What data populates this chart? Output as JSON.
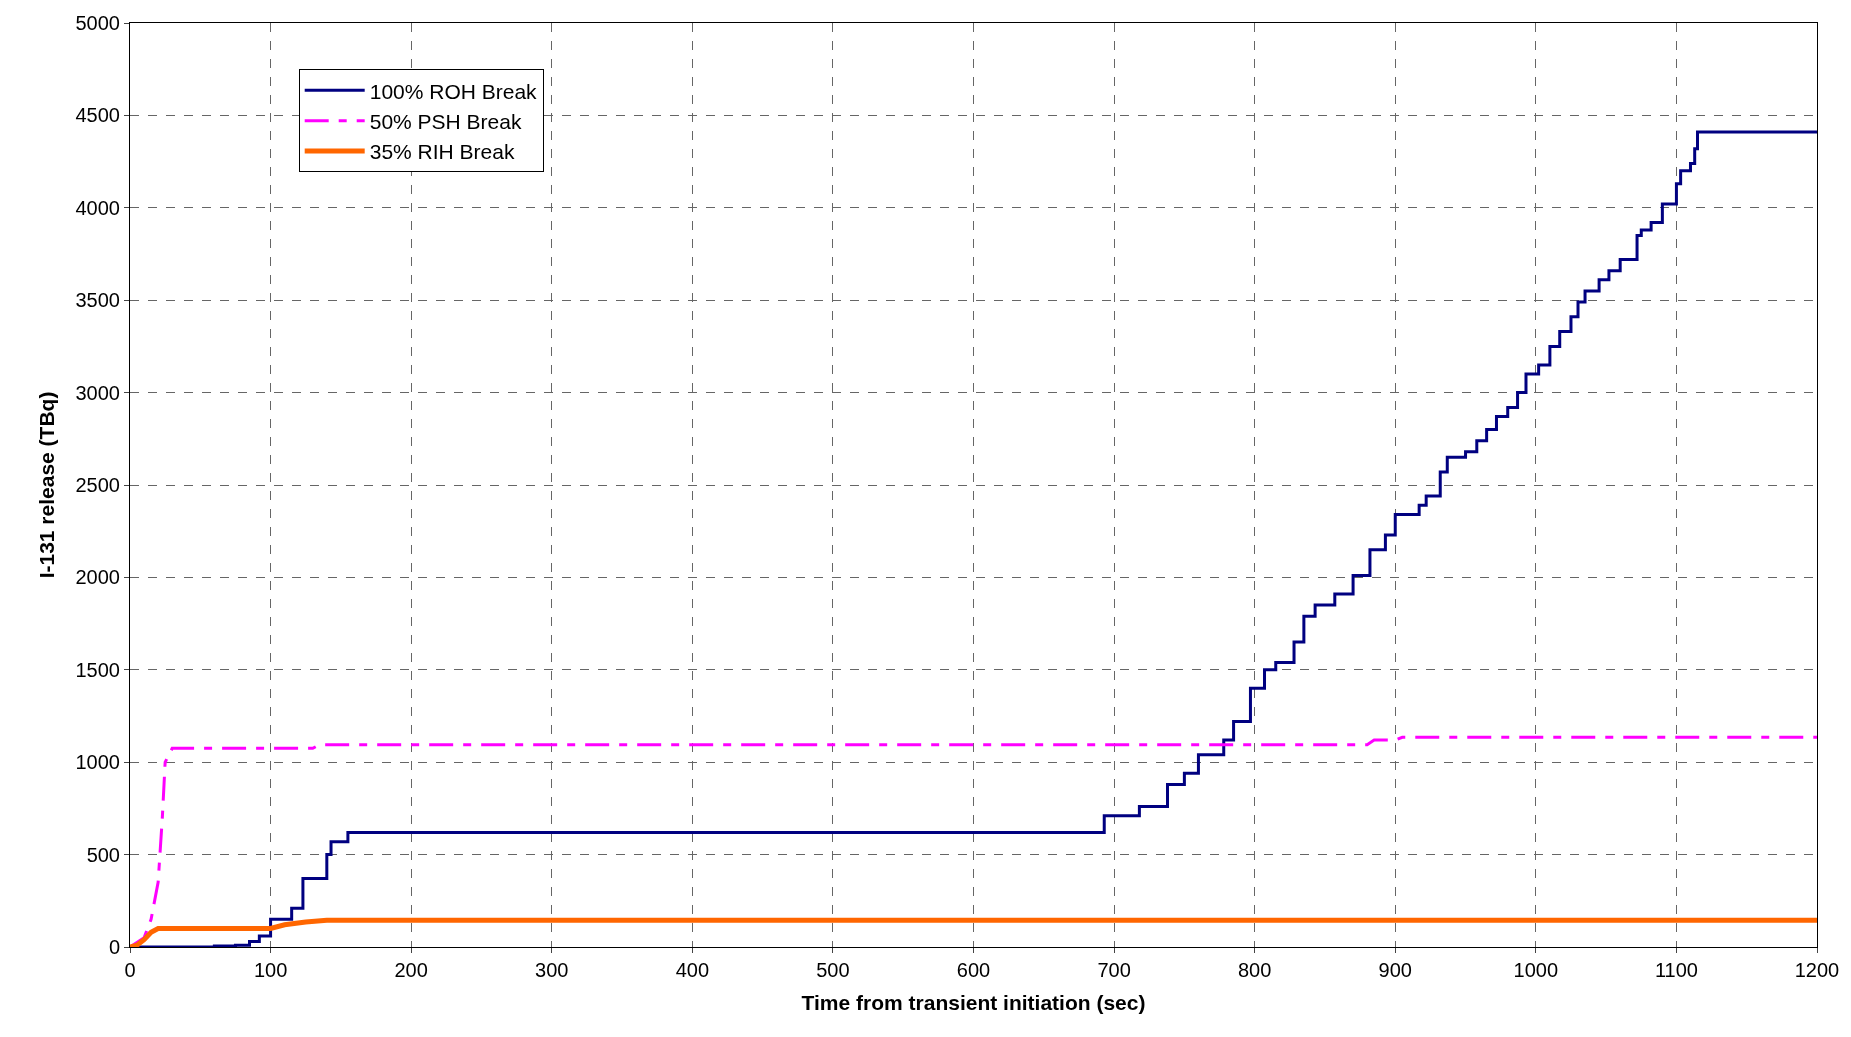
{
  "chart_data": {
    "type": "line",
    "xlabel": "Time from transient initiation (sec)",
    "ylabel": "I-131 release (TBq)",
    "xlim": [
      0,
      1200
    ],
    "xticks": [
      0,
      100,
      200,
      300,
      400,
      500,
      600,
      700,
      800,
      900,
      1000,
      1100,
      1200
    ],
    "ylim": [
      0,
      5000
    ],
    "yticks": [
      0,
      500,
      1000,
      1500,
      2000,
      2500,
      3000,
      3500,
      4000,
      4500,
      5000
    ],
    "grid": true,
    "legend": "top left",
    "marker": "none",
    "series": [
      {
        "name": "100% ROH Break",
        "color": "#000080",
        "type": "step",
        "line_style": "solid",
        "x": [
          0,
          60,
          75,
          85,
          92,
          100,
          115,
          123,
          140,
          143,
          155,
          693,
          718,
          738,
          750,
          760,
          778,
          785,
          797,
          807,
          815,
          828,
          835,
          843,
          857,
          870,
          882,
          893,
          900,
          917,
          922,
          932,
          937,
          950,
          958,
          965,
          972,
          980,
          987,
          993,
          1002,
          1010,
          1017,
          1025,
          1030,
          1035,
          1045,
          1052,
          1060,
          1072,
          1075,
          1082,
          1090,
          1100,
          1103,
          1110,
          1113,
          1115,
          1200
        ],
        "values": [
          0,
          5,
          10,
          30,
          60,
          150,
          210,
          370,
          500,
          570,
          620,
          710,
          760,
          880,
          940,
          1040,
          1120,
          1220,
          1400,
          1500,
          1540,
          1650,
          1790,
          1850,
          1910,
          2010,
          2150,
          2230,
          2340,
          2390,
          2440,
          2570,
          2650,
          2680,
          2740,
          2800,
          2870,
          2920,
          3000,
          3100,
          3150,
          3250,
          3330,
          3410,
          3490,
          3550,
          3610,
          3660,
          3720,
          3850,
          3880,
          3920,
          4020,
          4130,
          4200,
          4240,
          4320,
          4410,
          4410
        ]
      },
      {
        "name": "50% PSH Break",
        "color": "#ff00ff",
        "type": "line",
        "line_style": "dashed",
        "x": [
          0,
          10,
          15,
          20,
          23,
          25,
          30,
          130,
          135,
          880,
          885,
          900,
          905,
          1200
        ],
        "values": [
          0,
          50,
          150,
          350,
          700,
          1000,
          1075,
          1075,
          1095,
          1095,
          1120,
          1120,
          1135,
          1135
        ]
      },
      {
        "name": "35% RIH Break",
        "color": "#ff6600",
        "line_style": "solid",
        "x": [
          0,
          5,
          10,
          15,
          20,
          100,
          110,
          125,
          140,
          1200
        ],
        "values": [
          0,
          10,
          40,
          80,
          100,
          100,
          120,
          135,
          145,
          145
        ]
      }
    ]
  }
}
